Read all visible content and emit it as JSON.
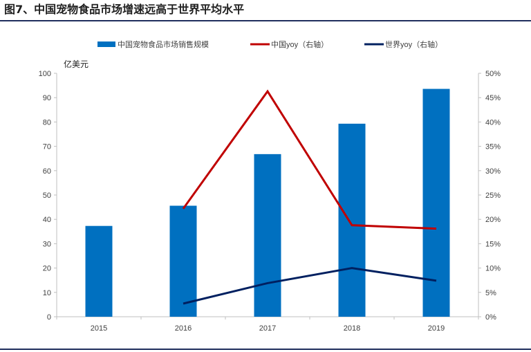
{
  "figure": {
    "title": "图7、中国宠物食品市场增速远高于世界平均水平"
  },
  "colors": {
    "bar": "#0070c0",
    "china_line": "#c00000",
    "world_line": "#002060",
    "axis": "#bfbfbf",
    "text": "#404040",
    "rule": "#1f2d5c"
  },
  "chart_data": {
    "type": "bar",
    "categories": [
      "2015",
      "2016",
      "2017",
      "2018",
      "2019"
    ],
    "ylabel": "亿美元",
    "ylim": [
      0,
      100
    ],
    "y_ticks": [
      "0",
      "10",
      "20",
      "30",
      "40",
      "50",
      "60",
      "70",
      "80",
      "90",
      "100"
    ],
    "y2lim": [
      0,
      0.5
    ],
    "y2_ticks": [
      "0%",
      "5%",
      "10%",
      "15%",
      "20%",
      "25%",
      "30%",
      "35%",
      "40%",
      "45%",
      "50%"
    ],
    "grid": false,
    "legend_position": "top",
    "series": [
      {
        "name": "中国宠物食品市场销售规模",
        "type": "bar",
        "axis": "left",
        "values": [
          37.3,
          45.6,
          66.8,
          79.3,
          93.6
        ]
      },
      {
        "name": "中国yoy（右轴）",
        "type": "line",
        "axis": "right",
        "values": [
          null,
          0.222,
          0.463,
          0.188,
          0.181
        ]
      },
      {
        "name": "世界yoy（右轴）",
        "type": "line",
        "axis": "right",
        "values": [
          null,
          0.027,
          0.069,
          0.1,
          0.074
        ]
      }
    ]
  }
}
